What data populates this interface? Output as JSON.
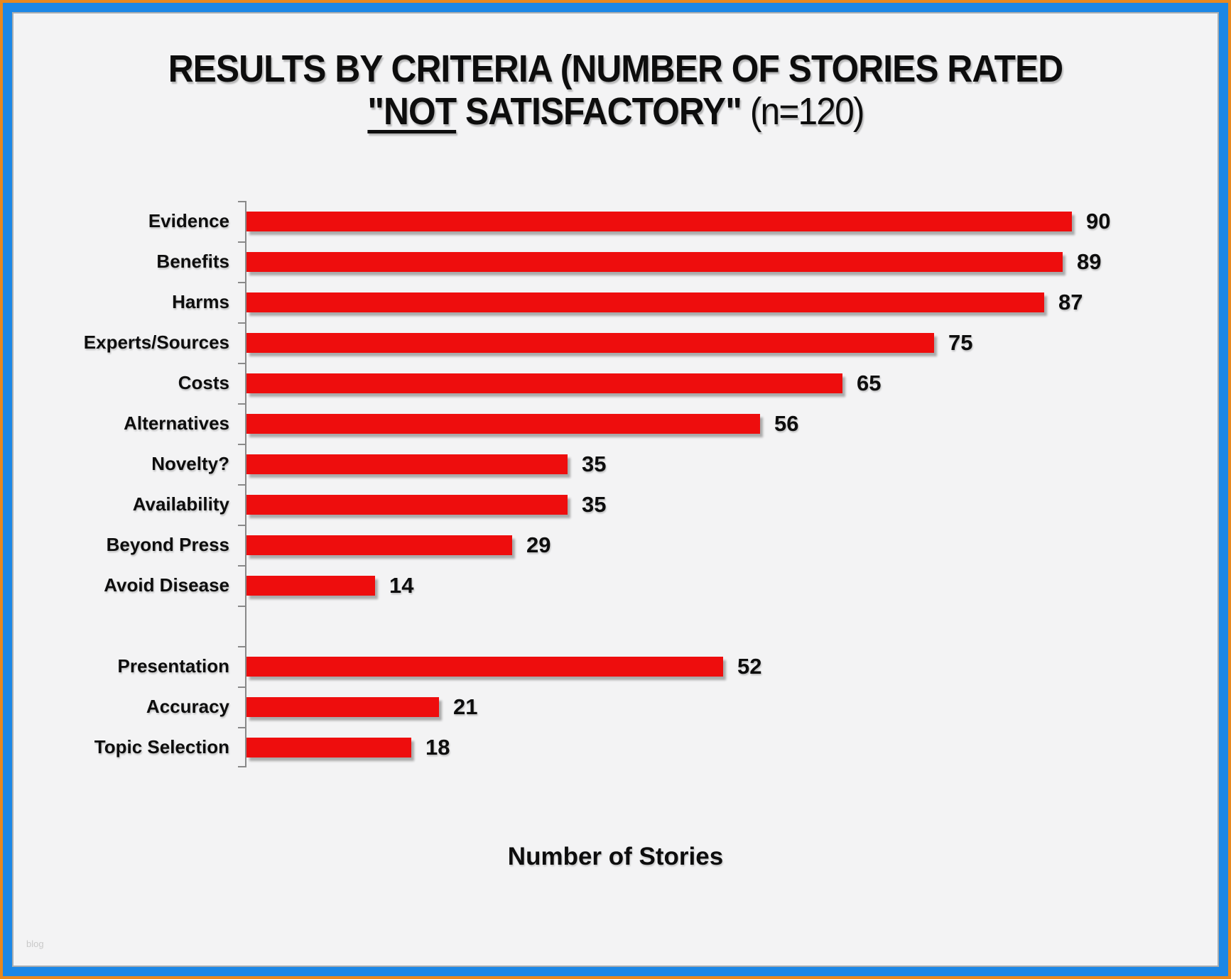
{
  "title": {
    "line1": "RESULTS BY CRITERIA (NUMBER OF STORIES RATED",
    "line2_underlined": "\"NOT",
    "line2_bold_rest": " SATISFACTORY\"",
    "line2_normal": " (n=120)"
  },
  "chart_data": {
    "type": "bar",
    "orientation": "horizontal",
    "title": "RESULTS BY CRITERIA (NUMBER OF STORIES RATED \"NOT SATISFACTORY\" (n=120)",
    "categories": [
      "Evidence",
      "Benefits",
      "Harms",
      "Experts/Sources",
      "Costs",
      "Alternatives",
      "Novelty?",
      "Availability",
      "Beyond Press",
      "Avoid Disease",
      "",
      "Presentation",
      "Accuracy",
      "Topic Selection"
    ],
    "values": [
      90,
      89,
      87,
      75,
      65,
      56,
      35,
      35,
      29,
      14,
      null,
      52,
      21,
      18
    ],
    "xlabel": "Number of Stories",
    "ylabel": "",
    "xlim": [
      0,
      90
    ],
    "grid": false,
    "legend": false,
    "data_labels": true,
    "sample_note": "n=120"
  },
  "watermark": "blog",
  "colors": {
    "outer_border": "#e7881f",
    "inner_border": "#1b87e6",
    "slide_bg": "#f3f3f4",
    "axis": "#898989",
    "bar": "#ee0d0d",
    "text": "#0d0d0d",
    "watermark": "#c9c9c9"
  }
}
